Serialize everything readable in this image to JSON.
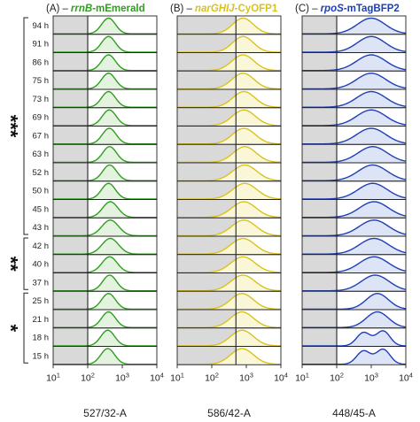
{
  "chart_data": {
    "type": "area",
    "time_points": [
      "94 h",
      "91 h",
      "86 h",
      "75 h",
      "73 h",
      "69 h",
      "67 h",
      "63 h",
      "52 h",
      "50 h",
      "45 h",
      "43 h",
      "42 h",
      "40 h",
      "37 h",
      "25 h",
      "21 h",
      "18 h",
      "15 h"
    ],
    "x_scale": "log",
    "xlim": [
      10,
      10000
    ],
    "x_ticks": [
      {
        "value": 10,
        "base": "10",
        "exp": "1"
      },
      {
        "value": 100,
        "base": "10",
        "exp": "2"
      },
      {
        "value": 1000,
        "base": "10",
        "exp": "3"
      },
      {
        "value": 10000,
        "base": "10",
        "exp": "4"
      }
    ],
    "significance_groups": [
      {
        "label": "***",
        "from": "94 h",
        "to": "43 h"
      },
      {
        "label": "**",
        "from": "42 h",
        "to": "37 h"
      },
      {
        "label": "*",
        "from": "25 h",
        "to": "15 h"
      }
    ],
    "panels": [
      {
        "letter": "(A) –",
        "gene": "rrnB",
        "reporter": "-mEmerald",
        "xlabel": "527/32-A",
        "color": "#2e9e1e",
        "fill": "#e4f3df",
        "gate": 100,
        "peaks": [
          {
            "t": "94 h",
            "peaks": [
              {
                "center": 400,
                "height": 1.0,
                "width": 0.2
              }
            ]
          },
          {
            "t": "91 h",
            "peaks": [
              {
                "center": 400,
                "height": 1.0,
                "width": 0.2
              }
            ]
          },
          {
            "t": "86 h",
            "peaks": [
              {
                "center": 400,
                "height": 1.0,
                "width": 0.2
              }
            ]
          },
          {
            "t": "75 h",
            "peaks": [
              {
                "center": 400,
                "height": 1.0,
                "width": 0.2
              }
            ]
          },
          {
            "t": "73 h",
            "peaks": [
              {
                "center": 400,
                "height": 1.0,
                "width": 0.2
              }
            ]
          },
          {
            "t": "69 h",
            "peaks": [
              {
                "center": 420,
                "height": 1.0,
                "width": 0.2
              }
            ]
          },
          {
            "t": "67 h",
            "peaks": [
              {
                "center": 420,
                "height": 1.0,
                "width": 0.2
              }
            ]
          },
          {
            "t": "63 h",
            "peaks": [
              {
                "center": 430,
                "height": 1.0,
                "width": 0.2
              }
            ]
          },
          {
            "t": "52 h",
            "peaks": [
              {
                "center": 430,
                "height": 1.0,
                "width": 0.2
              }
            ]
          },
          {
            "t": "50 h",
            "peaks": [
              {
                "center": 400,
                "height": 1.0,
                "width": 0.2
              }
            ]
          },
          {
            "t": "45 h",
            "peaks": [
              {
                "center": 450,
                "height": 1.0,
                "width": 0.22
              }
            ]
          },
          {
            "t": "43 h",
            "peaks": [
              {
                "center": 450,
                "height": 1.0,
                "width": 0.24
              }
            ]
          },
          {
            "t": "42 h",
            "peaks": [
              {
                "center": 450,
                "height": 1.0,
                "width": 0.24
              }
            ]
          },
          {
            "t": "40 h",
            "peaks": [
              {
                "center": 430,
                "height": 1.0,
                "width": 0.22
              }
            ]
          },
          {
            "t": "37 h",
            "peaks": [
              {
                "center": 430,
                "height": 1.0,
                "width": 0.2
              }
            ]
          },
          {
            "t": "25 h",
            "peaks": [
              {
                "center": 400,
                "height": 1.0,
                "width": 0.2
              }
            ]
          },
          {
            "t": "21 h",
            "peaks": [
              {
                "center": 400,
                "height": 1.0,
                "width": 0.2
              }
            ]
          },
          {
            "t": "18 h",
            "peaks": [
              {
                "center": 380,
                "height": 1.0,
                "width": 0.2
              }
            ]
          },
          {
            "t": "15 h",
            "peaks": [
              {
                "center": 380,
                "height": 1.0,
                "width": 0.2
              }
            ]
          }
        ]
      },
      {
        "letter": "(B) –",
        "gene": "narGHIJ",
        "reporter": "-CyOFP1",
        "xlabel": "586/42-A",
        "color": "#d9c21c",
        "fill": "#faf6d8",
        "gate": 500,
        "peaks": [
          {
            "t": "94 h",
            "peaks": [
              {
                "center": 800,
                "height": 1.0,
                "width": 0.3
              }
            ]
          },
          {
            "t": "91 h",
            "peaks": [
              {
                "center": 800,
                "height": 1.0,
                "width": 0.3
              }
            ]
          },
          {
            "t": "86 h",
            "peaks": [
              {
                "center": 800,
                "height": 1.0,
                "width": 0.32
              }
            ]
          },
          {
            "t": "75 h",
            "peaks": [
              {
                "center": 800,
                "height": 1.0,
                "width": 0.32
              }
            ]
          },
          {
            "t": "73 h",
            "peaks": [
              {
                "center": 850,
                "height": 1.0,
                "width": 0.32
              }
            ]
          },
          {
            "t": "69 h",
            "peaks": [
              {
                "center": 850,
                "height": 1.0,
                "width": 0.33
              }
            ]
          },
          {
            "t": "67 h",
            "peaks": [
              {
                "center": 850,
                "height": 1.0,
                "width": 0.33
              }
            ]
          },
          {
            "t": "63 h",
            "peaks": [
              {
                "center": 900,
                "height": 1.0,
                "width": 0.33
              }
            ]
          },
          {
            "t": "52 h",
            "peaks": [
              {
                "center": 900,
                "height": 1.0,
                "width": 0.35
              }
            ]
          },
          {
            "t": "50 h",
            "peaks": [
              {
                "center": 900,
                "height": 1.0,
                "width": 0.35
              }
            ]
          },
          {
            "t": "45 h",
            "peaks": [
              {
                "center": 850,
                "height": 1.0,
                "width": 0.35
              }
            ]
          },
          {
            "t": "43 h",
            "peaks": [
              {
                "center": 850,
                "height": 1.0,
                "width": 0.35
              }
            ]
          },
          {
            "t": "42 h",
            "peaks": [
              {
                "center": 800,
                "height": 1.0,
                "width": 0.35
              }
            ]
          },
          {
            "t": "40 h",
            "peaks": [
              {
                "center": 800,
                "height": 1.0,
                "width": 0.35
              }
            ]
          },
          {
            "t": "37 h",
            "peaks": [
              {
                "center": 800,
                "height": 1.0,
                "width": 0.35
              }
            ]
          },
          {
            "t": "25 h",
            "peaks": [
              {
                "center": 750,
                "height": 1.0,
                "width": 0.33
              }
            ]
          },
          {
            "t": "21 h",
            "peaks": [
              {
                "center": 750,
                "height": 1.0,
                "width": 0.33
              }
            ]
          },
          {
            "t": "18 h",
            "peaks": [
              {
                "center": 750,
                "height": 1.0,
                "width": 0.33
              }
            ]
          },
          {
            "t": "15 h",
            "peaks": [
              {
                "center": 750,
                "height": 1.0,
                "width": 0.33
              }
            ]
          }
        ]
      },
      {
        "letter": "(C) –",
        "gene": "rpoS",
        "reporter": "-mTagBFP2",
        "xlabel": "448/45-A",
        "color": "#1d3fb5",
        "fill": "#dde4f6",
        "gate": 100,
        "peaks": [
          {
            "t": "94 h",
            "peaks": [
              {
                "center": 1000,
                "height": 1.0,
                "width": 0.4
              }
            ]
          },
          {
            "t": "91 h",
            "peaks": [
              {
                "center": 1000,
                "height": 1.0,
                "width": 0.4
              }
            ]
          },
          {
            "t": "86 h",
            "peaks": [
              {
                "center": 1000,
                "height": 1.0,
                "width": 0.42
              }
            ]
          },
          {
            "t": "75 h",
            "peaks": [
              {
                "center": 1000,
                "height": 1.0,
                "width": 0.42
              }
            ]
          },
          {
            "t": "73 h",
            "peaks": [
              {
                "center": 1000,
                "height": 1.0,
                "width": 0.42
              }
            ]
          },
          {
            "t": "69 h",
            "peaks": [
              {
                "center": 1000,
                "height": 1.0,
                "width": 0.42
              }
            ]
          },
          {
            "t": "67 h",
            "peaks": [
              {
                "center": 1000,
                "height": 1.0,
                "width": 0.42
              }
            ]
          },
          {
            "t": "63 h",
            "peaks": [
              {
                "center": 1100,
                "height": 1.0,
                "width": 0.42
              }
            ]
          },
          {
            "t": "52 h",
            "peaks": [
              {
                "center": 1100,
                "height": 1.0,
                "width": 0.42
              }
            ]
          },
          {
            "t": "50 h",
            "peaks": [
              {
                "center": 1100,
                "height": 1.0,
                "width": 0.42
              }
            ]
          },
          {
            "t": "45 h",
            "peaks": [
              {
                "center": 1200,
                "height": 1.0,
                "width": 0.42
              }
            ]
          },
          {
            "t": "43 h",
            "peaks": [
              {
                "center": 1200,
                "height": 1.0,
                "width": 0.42
              }
            ]
          },
          {
            "t": "42 h",
            "peaks": [
              {
                "center": 1200,
                "height": 1.0,
                "width": 0.42
              }
            ]
          },
          {
            "t": "40 h",
            "peaks": [
              {
                "center": 1200,
                "height": 1.0,
                "width": 0.42
              }
            ]
          },
          {
            "t": "37 h",
            "peaks": [
              {
                "center": 1300,
                "height": 1.0,
                "width": 0.4
              }
            ]
          },
          {
            "t": "25 h",
            "peaks": [
              {
                "center": 1500,
                "height": 1.0,
                "width": 0.32
              }
            ]
          },
          {
            "t": "21 h",
            "peaks": [
              {
                "center": 1500,
                "height": 1.0,
                "width": 0.32
              }
            ]
          },
          {
            "t": "18 h",
            "peaks": [
              {
                "center": 600,
                "height": 0.85,
                "width": 0.2
              },
              {
                "center": 2200,
                "height": 0.95,
                "width": 0.2
              }
            ]
          },
          {
            "t": "15 h",
            "peaks": [
              {
                "center": 600,
                "height": 0.85,
                "width": 0.2
              },
              {
                "center": 2200,
                "height": 0.95,
                "width": 0.2
              }
            ]
          }
        ]
      }
    ]
  }
}
